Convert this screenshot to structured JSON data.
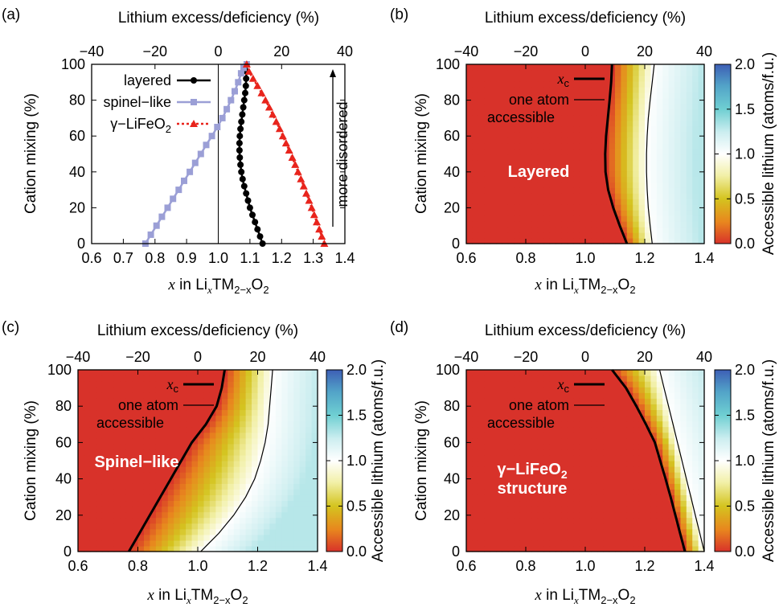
{
  "panels": {
    "a": {
      "label": "(a)",
      "top_axis_label": "Lithium excess/deficiency (%)",
      "ylabel": "Cation mixing (%)",
      "xlabel_pre": "x",
      "xlabel_mid": " in Li",
      "xlabel_sub1": "x",
      "xlabel_tm": "TM",
      "xlabel_sub2": "2−x",
      "xlabel_o": "O",
      "xlabel_sub3": "2",
      "arrow_text": "more disordered"
    },
    "b": {
      "label": "(b)",
      "top_axis_label": "Lithium excess/deficiency (%)",
      "ylabel": "Cation mixing (%)",
      "region_label": "Layered",
      "cbar_label": "Accessible lithium (atoms/f.u.)"
    },
    "c": {
      "label": "(c)",
      "top_axis_label": "Lithium excess/deficiency (%)",
      "ylabel": "Cation mixing (%)",
      "region_label": "Spinel−like",
      "cbar_label": "Accessible lithium (atoms/f.u.)"
    },
    "d": {
      "label": "(d)",
      "top_axis_label": "Lithium excess/deficiency (%)",
      "ylabel": "Cation mixing (%)",
      "region_label_1": "γ−LiFeO",
      "region_label_1_sub": "2",
      "region_label_2": "structure",
      "cbar_label": "Accessible lithium (atoms/f.u.)"
    }
  },
  "legend": {
    "layered": "layered",
    "spinel": "spinel−like",
    "gamma_pre": "γ−LiFeO",
    "gamma_sub": "2",
    "xc": "x",
    "xc_sub": "c",
    "one_atom_1": "one atom",
    "one_atom_2": "accessible"
  },
  "colors": {
    "layered": "#000000",
    "spinel": "#9b9fd6",
    "gamma": "#e8241c",
    "heat_low": "#d8322a",
    "heat_mid": "#ffffff",
    "heat_high": "#3d5fb5"
  },
  "chart_data": [
    {
      "type": "line",
      "panel": "a",
      "xlim": [
        0.6,
        1.4
      ],
      "ylim": [
        0,
        100
      ],
      "top_axis_range": [
        -40,
        40
      ],
      "x_ticks": [
        "0.6",
        "0.7",
        "0.8",
        "0.9",
        "1.0",
        "1.1",
        "1.2",
        "1.3",
        "1.4"
      ],
      "y_ticks": [
        "0",
        "20",
        "40",
        "60",
        "80",
        "100"
      ],
      "top_ticks": [
        "−40",
        "−20",
        "0",
        "20",
        "40"
      ],
      "series": [
        {
          "name": "layered",
          "x": [
            1.14,
            1.132,
            1.124,
            1.116,
            1.108,
            1.1,
            1.094,
            1.088,
            1.082,
            1.077,
            1.073,
            1.07,
            1.068,
            1.067,
            1.067,
            1.068,
            1.07,
            1.073,
            1.076,
            1.079,
            1.082,
            1.085,
            1.087,
            1.088,
            1.089,
            1.09
          ],
          "y": [
            0,
            4,
            8,
            12,
            16,
            20,
            24,
            28,
            32,
            36,
            40,
            44,
            48,
            52,
            56,
            60,
            64,
            68,
            72,
            76,
            80,
            84,
            88,
            92,
            96,
            100
          ]
        },
        {
          "name": "spinel−like",
          "x": [
            0.77,
            0.787,
            0.805,
            0.822,
            0.84,
            0.857,
            0.875,
            0.892,
            0.91,
            0.927,
            0.945,
            0.962,
            0.98,
            0.997,
            1.013,
            1.027,
            1.04,
            1.052,
            1.063,
            1.072,
            1.08,
            1.09
          ],
          "y": [
            0,
            5,
            10,
            15,
            20,
            25,
            30,
            35,
            40,
            45,
            50,
            55,
            60,
            65,
            70,
            75,
            80,
            85,
            90,
            95,
            98,
            100
          ]
        },
        {
          "name": "γ−LiFeO2",
          "x": [
            1.335,
            1.327,
            1.319,
            1.311,
            1.303,
            1.295,
            1.287,
            1.278,
            1.27,
            1.261,
            1.252,
            1.243,
            1.234,
            1.224,
            1.214,
            1.204,
            1.194,
            1.183,
            1.172,
            1.161,
            1.149,
            1.137,
            1.124,
            1.11,
            1.097,
            1.09
          ],
          "y": [
            0,
            4,
            8,
            12,
            16,
            20,
            24,
            28,
            32,
            36,
            40,
            44,
            48,
            52,
            56,
            60,
            64,
            68,
            72,
            76,
            80,
            84,
            88,
            92,
            96,
            100
          ]
        }
      ]
    },
    {
      "type": "heatmap",
      "panel": "b",
      "xlim": [
        0.6,
        1.4
      ],
      "ylim": [
        0,
        100
      ],
      "clim": [
        0,
        2.0
      ],
      "x_ticks": [
        "0.6",
        "0.8",
        "1.0",
        "1.2",
        "1.4"
      ],
      "y_ticks": [
        "0",
        "20",
        "40",
        "60",
        "80",
        "100"
      ],
      "top_ticks": [
        "−40",
        "−20",
        "0",
        "20",
        "40"
      ],
      "cbar_ticks": [
        "0.0",
        "0.5",
        "1.0",
        "1.5",
        "2.0"
      ],
      "xc": {
        "x": [
          1.14,
          1.116,
          1.094,
          1.077,
          1.068,
          1.067,
          1.07,
          1.076,
          1.082,
          1.087,
          1.09
        ],
        "y": [
          0,
          10,
          20,
          30,
          40,
          50,
          60,
          70,
          80,
          90,
          100
        ]
      },
      "one_atom": {
        "x": [
          1.225,
          1.218,
          1.212,
          1.208,
          1.206,
          1.206,
          1.208,
          1.212,
          1.218,
          1.225,
          1.232
        ],
        "y": [
          0,
          10,
          20,
          30,
          40,
          50,
          60,
          70,
          80,
          90,
          100
        ]
      }
    },
    {
      "type": "heatmap",
      "panel": "c",
      "xlim": [
        0.6,
        1.4
      ],
      "ylim": [
        0,
        100
      ],
      "clim": [
        0,
        2.0
      ],
      "x_ticks": [
        "0.6",
        "0.8",
        "1.0",
        "1.2",
        "1.4"
      ],
      "y_ticks": [
        "0",
        "20",
        "40",
        "60",
        "80",
        "100"
      ],
      "top_ticks": [
        "−40",
        "−20",
        "0",
        "20",
        "40"
      ],
      "cbar_ticks": [
        "0.0",
        "0.5",
        "1.0",
        "1.5",
        "2.0"
      ],
      "xc": {
        "x": [
          0.77,
          0.805,
          0.84,
          0.875,
          0.91,
          0.945,
          0.98,
          1.027,
          1.063,
          1.08,
          1.09
        ],
        "y": [
          0,
          10,
          20,
          30,
          40,
          50,
          60,
          70,
          80,
          90,
          100
        ]
      },
      "one_atom": {
        "x": [
          1.01,
          1.07,
          1.12,
          1.16,
          1.19,
          1.21,
          1.225,
          1.235,
          1.24,
          1.245,
          1.25
        ],
        "y": [
          0,
          10,
          20,
          30,
          40,
          50,
          60,
          70,
          80,
          90,
          100
        ]
      }
    },
    {
      "type": "heatmap",
      "panel": "d",
      "xlim": [
        0.6,
        1.4
      ],
      "ylim": [
        0,
        100
      ],
      "clim": [
        0,
        2.0
      ],
      "x_ticks": [
        "0.6",
        "0.8",
        "1.0",
        "1.2",
        "1.4"
      ],
      "y_ticks": [
        "0",
        "20",
        "40",
        "60",
        "80",
        "100"
      ],
      "top_ticks": [
        "−40",
        "−20",
        "0",
        "20",
        "40"
      ],
      "cbar_ticks": [
        "0.0",
        "0.5",
        "1.0",
        "1.5",
        "2.0"
      ],
      "xc": {
        "x": [
          1.335,
          1.319,
          1.303,
          1.287,
          1.27,
          1.252,
          1.234,
          1.204,
          1.172,
          1.137,
          1.09
        ],
        "y": [
          0,
          10,
          20,
          30,
          40,
          50,
          60,
          70,
          80,
          90,
          100
        ]
      },
      "one_atom": {
        "x": [
          1.4,
          1.385,
          1.37,
          1.355,
          1.34,
          1.325,
          1.31,
          1.295,
          1.28,
          1.265,
          1.25
        ],
        "y": [
          0,
          10,
          20,
          30,
          40,
          50,
          60,
          70,
          80,
          90,
          100
        ]
      }
    }
  ]
}
